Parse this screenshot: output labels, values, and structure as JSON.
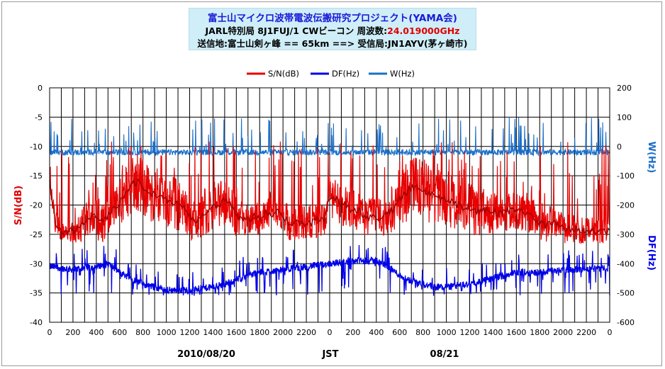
{
  "title": {
    "line1": "富士山マイクロ波帯電波伝搬研究プロジェクト(YAMA会)",
    "line2_prefix": "JARL特別局 8J1FUJ/1  CWビーコン 周波数:",
    "line2_freq": "24.019000GHz",
    "line3": "送信地:富士山剣ヶ峰 == 65km ==> 受信局:JN1AYV(茅ヶ崎市)"
  },
  "chart_data": {
    "type": "line",
    "x": {
      "unit": "JST hour (two days)",
      "range": [
        0,
        48
      ],
      "tick_labels": [
        "0",
        "200",
        "400",
        "600",
        "800",
        "1000",
        "1200",
        "1400",
        "1600",
        "1800",
        "2000",
        "2200",
        "0",
        "200",
        "400",
        "600",
        "800",
        "1000",
        "1200",
        "1400",
        "1600",
        "1800",
        "2000",
        "2200",
        "0"
      ],
      "date_labels": [
        "2010/08/20",
        "JST",
        "08/21"
      ]
    },
    "y_left": {
      "label": "S/N(dB)",
      "range": [
        -40,
        0
      ],
      "ticks": [
        "0",
        "-5",
        "-10",
        "-15",
        "-20",
        "-25",
        "-30",
        "-35",
        "-40"
      ]
    },
    "y_right_top": {
      "label": "W(Hz)"
    },
    "y_right_bottom": {
      "label": "DF(Hz)"
    },
    "y_right_range": [
      -600,
      200
    ],
    "y_right_ticks": [
      "200",
      "100",
      "0",
      "-100",
      "-200",
      "-300",
      "-400",
      "-500",
      "-600"
    ],
    "legend_position": "top-center",
    "series": [
      {
        "name": "S/N(dB)",
        "axis": "left",
        "color": "#e80000",
        "smooth_color": "#990000",
        "x": [
          0,
          0.5,
          1,
          1.5,
          2,
          2.5,
          3,
          3.5,
          4,
          4.5,
          5,
          5.5,
          6,
          6.5,
          7,
          7.5,
          8,
          8.5,
          9,
          9.5,
          10,
          10.5,
          11,
          11.5,
          12,
          12.5,
          13,
          13.5,
          14,
          14.5,
          15,
          15.5,
          16,
          16.5,
          17,
          17.5,
          18,
          18.5,
          19,
          19.5,
          20,
          20.5,
          21,
          21.5,
          22,
          22.5,
          23,
          23.5,
          24,
          24.5,
          25,
          25.5,
          26,
          26.5,
          27,
          27.5,
          28,
          28.5,
          29,
          29.5,
          30,
          30.5,
          31,
          31.5,
          32,
          32.5,
          33,
          33.5,
          34,
          34.5,
          35,
          35.5,
          36,
          36.5,
          37,
          37.5,
          38,
          38.5,
          39,
          39.5,
          40,
          40.5,
          41,
          41.5,
          42,
          42.5,
          43,
          43.5,
          44,
          44.5,
          45,
          45.5,
          46,
          46.5,
          47,
          47.5,
          48
        ],
        "center": [
          -16,
          -23,
          -24.5,
          -24.5,
          -24.5,
          -24,
          -23,
          -22,
          -22,
          -23,
          -22,
          -20.5,
          -19.5,
          -18,
          -16.5,
          -16,
          -17,
          -18,
          -18,
          -18.5,
          -19,
          -19.5,
          -20,
          -20.5,
          -22,
          -23,
          -22,
          -21.5,
          -20.5,
          -20,
          -19,
          -19.5,
          -22,
          -22.5,
          -22.5,
          -22,
          -22.5,
          -21.5,
          -21.5,
          -21,
          -22,
          -23,
          -23,
          -23,
          -23,
          -23,
          -22.5,
          -22.5,
          -18.5,
          -19,
          -20,
          -20,
          -21,
          -21,
          -22,
          -22,
          -22,
          -22,
          -21.5,
          -20.5,
          -19,
          -18,
          -17,
          -16.5,
          -17.5,
          -18,
          -18,
          -19,
          -19,
          -19.5,
          -20,
          -20.5,
          -20.5,
          -21,
          -21,
          -21,
          -21,
          -21.5,
          -21,
          -21,
          -20.5,
          -21,
          -21.5,
          -22,
          -23,
          -23.5,
          -23,
          -23.5,
          -24,
          -24,
          -24,
          -24.5,
          -24.5,
          -24.5,
          -24.5,
          -24.5,
          -24.5
        ],
        "spread": [
          1,
          2,
          1.5,
          1.5,
          2,
          2.5,
          3,
          3.5,
          4,
          3.5,
          3,
          3,
          4,
          4.5,
          5,
          5,
          5,
          5,
          5,
          4.5,
          4.5,
          4.5,
          4.5,
          4,
          4,
          3.5,
          3.5,
          3.5,
          3.5,
          4,
          4.5,
          4,
          3.5,
          3,
          3,
          3,
          3,
          3,
          3,
          3,
          3,
          3,
          3,
          3,
          3,
          3,
          3,
          3,
          3.5,
          3.5,
          3.5,
          3.5,
          3.5,
          3.5,
          3.5,
          3.5,
          3.5,
          3.5,
          3.5,
          4,
          4.5,
          5,
          5,
          5,
          5,
          5,
          5,
          5,
          5,
          5,
          4.5,
          4.5,
          4.5,
          4.5,
          4,
          4,
          4,
          3.5,
          3.5,
          3.5,
          3.5,
          3.5,
          3.5,
          3,
          3,
          3,
          3,
          3,
          3,
          2.5,
          2.5,
          2.5,
          2.5,
          2.5,
          2.5,
          2.5,
          2.5
        ],
        "floor": -26.5,
        "spike_count": 200,
        "spike_max": -9
      },
      {
        "name": "DF(Hz)",
        "axis": "right",
        "color": "#0000e8",
        "x": [
          0,
          2,
          4,
          5,
          6,
          7,
          8,
          9,
          10,
          11,
          12,
          13,
          14,
          15,
          16,
          17,
          18,
          19,
          20,
          21,
          22,
          23,
          24,
          25,
          26,
          27,
          28,
          29,
          30,
          31,
          32,
          33,
          34,
          35,
          36,
          37,
          38,
          39,
          40,
          41,
          42,
          43,
          44,
          45,
          46,
          47,
          48
        ],
        "center": [
          -410,
          -420,
          -410,
          -400,
          -430,
          -450,
          -470,
          -480,
          -490,
          -490,
          -490,
          -485,
          -480,
          -470,
          -455,
          -440,
          -430,
          -425,
          -420,
          -415,
          -410,
          -405,
          -400,
          -395,
          -390,
          -390,
          -390,
          -410,
          -440,
          -460,
          -470,
          -480,
          -480,
          -475,
          -470,
          -460,
          -450,
          -440,
          -430,
          -430,
          -430,
          -425,
          -420,
          -420,
          -420,
          -415,
          -420
        ],
        "spread": 12,
        "spike_count": 140,
        "spike_min": -510
      },
      {
        "name": "W(Hz)",
        "axis": "right",
        "color": "#1a6ec8",
        "x": [
          0,
          48
        ],
        "center": [
          -20,
          -20
        ],
        "spread": 10,
        "spike_count": 120,
        "spike_max": 100
      }
    ]
  }
}
